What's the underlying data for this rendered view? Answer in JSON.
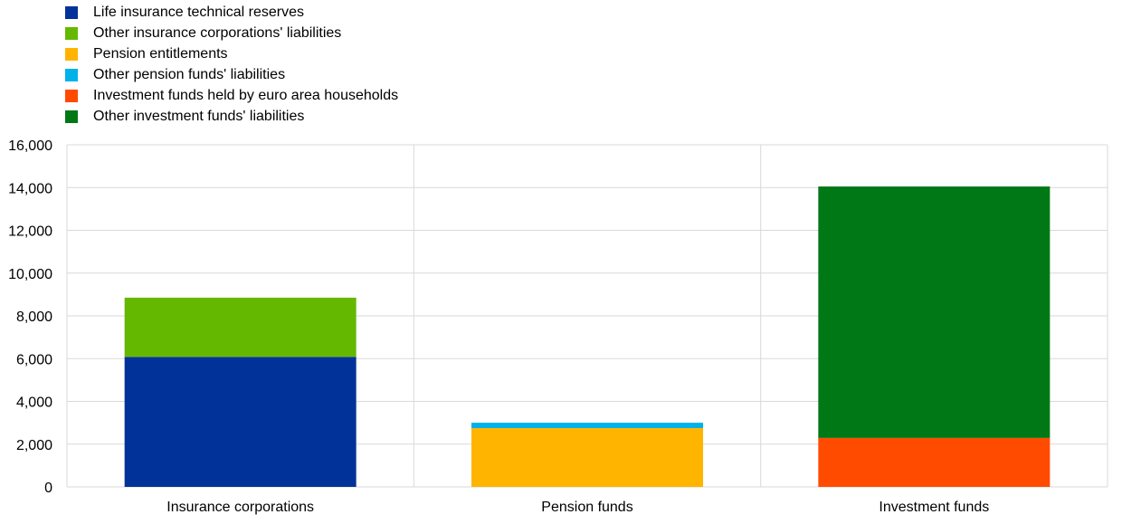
{
  "chart_data": {
    "type": "stacked-bar",
    "categories": [
      "Insurance corporations",
      "Pension funds",
      "Investment funds"
    ],
    "series": [
      {
        "name": "Life insurance technical reserves",
        "color": "#003299",
        "values": [
          6080,
          0,
          0
        ]
      },
      {
        "name": "Other insurance corporations' liabilities",
        "color": "#65b800",
        "values": [
          2770,
          0,
          0
        ]
      },
      {
        "name": "Pension entitlements",
        "color": "#ffb400",
        "values": [
          0,
          2750,
          0
        ]
      },
      {
        "name": "Other pension funds' liabilities",
        "color": "#00b1ea",
        "values": [
          0,
          250,
          0
        ]
      },
      {
        "name": "Investment funds held by euro area households",
        "color": "#ff4b00",
        "values": [
          0,
          0,
          2290
        ]
      },
      {
        "name": "Other investment funds' liabilities",
        "color": "#007816",
        "values": [
          0,
          0,
          11760
        ]
      }
    ],
    "ylim": [
      0,
      16000
    ],
    "yticks": [
      "0",
      "2,000",
      "4,000",
      "6,000",
      "8,000",
      "10,000",
      "12,000",
      "14,000",
      "16,000"
    ],
    "grid": true,
    "legend": "top-left"
  }
}
